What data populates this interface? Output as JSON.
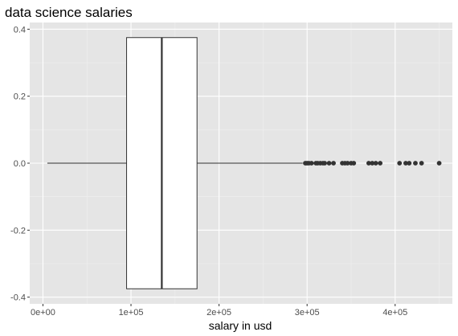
{
  "chart_data": {
    "type": "boxplot",
    "title": "data science salaries",
    "xlabel": "salary in usd",
    "ylabel": "",
    "xlim": [
      -15000,
      465000
    ],
    "ylim": [
      -0.42,
      0.42
    ],
    "x_ticks": [
      0,
      100000,
      200000,
      300000,
      400000
    ],
    "x_tick_labels": [
      "0e+00",
      "1e+05",
      "2e+05",
      "3e+05",
      "4e+05"
    ],
    "y_ticks": [
      -0.4,
      -0.2,
      0.0,
      0.2,
      0.4
    ],
    "y_tick_labels": [
      "-0.4",
      "-0.2",
      "0.0",
      "0.2",
      "0.4"
    ],
    "grid": true,
    "box": {
      "y_center": 0.0,
      "y_half_width": 0.375,
      "whisker_low": 5000,
      "q1": 95000,
      "median": 135000,
      "q3": 175000,
      "whisker_high": 295000
    },
    "outliers": [
      298000,
      300000,
      302000,
      305000,
      310000,
      312000,
      315000,
      318000,
      320000,
      325000,
      330000,
      340000,
      343000,
      346000,
      350000,
      353000,
      370000,
      374000,
      378000,
      383000,
      405000,
      412000,
      416000,
      423000,
      430000,
      450000
    ],
    "colors": {
      "panel_background": "#e5e5e5",
      "grid_major": "#ffffff",
      "grid_minor": "#f0f0f0",
      "box_fill": "#ffffff",
      "line": "#333333",
      "point": "#333333",
      "tick_text": "#4d4d4d"
    }
  }
}
